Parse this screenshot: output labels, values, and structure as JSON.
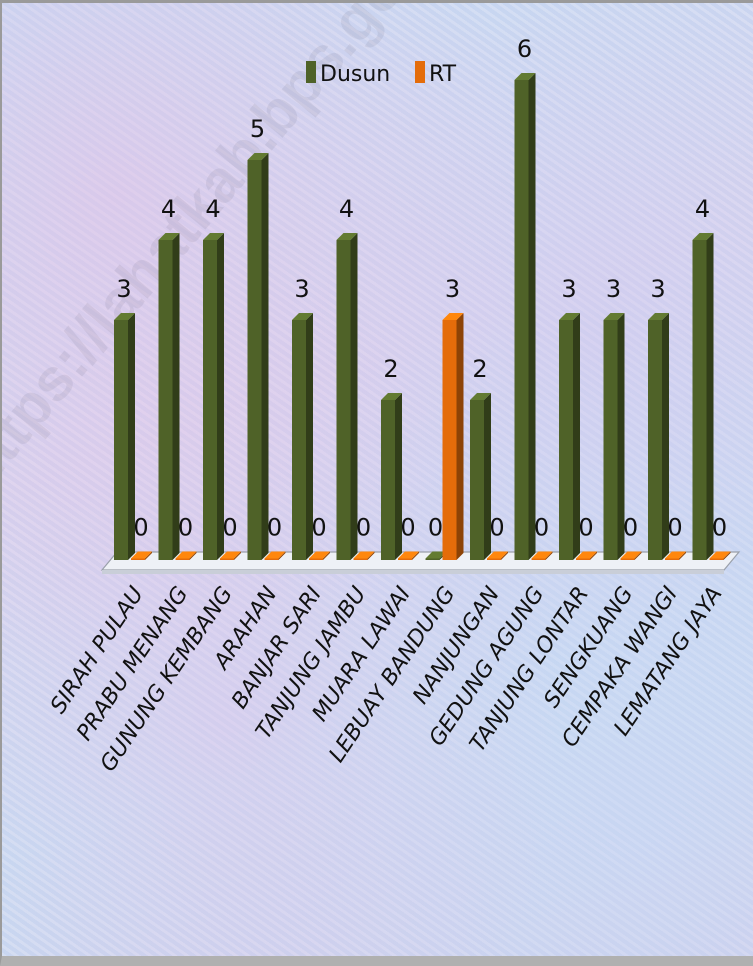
{
  "watermark_text": "https://lahatkab.bps.go.id",
  "chart_data": {
    "type": "bar",
    "title": "",
    "xlabel": "",
    "ylabel": "",
    "ylim": [
      0,
      6
    ],
    "grid": false,
    "legend_position": "top-center",
    "categories": [
      "SIRAH PULAU",
      "PRABU MENANG",
      "GUNUNG KEMBANG",
      "ARAHAN",
      "BANJAR SARI",
      "TANJUNG JAMBU",
      "MUARA LAWAI",
      "LEBUAY BANDUNG",
      "NANJUNGAN",
      "GEDUNG AGUNG",
      "TANJUNG LONTAR",
      "SENGKUANG",
      "CEMPAKA WANGI",
      "LEMATANG JAYA"
    ],
    "series": [
      {
        "name": "Dusun",
        "color": "#4f6228",
        "values": [
          3,
          4,
          4,
          5,
          3,
          4,
          2,
          0,
          2,
          6,
          3,
          3,
          3,
          4
        ]
      },
      {
        "name": "RT",
        "color": "#e46c0a",
        "values": [
          0,
          0,
          0,
          0,
          0,
          0,
          0,
          3,
          0,
          0,
          0,
          0,
          0,
          0
        ]
      }
    ]
  }
}
